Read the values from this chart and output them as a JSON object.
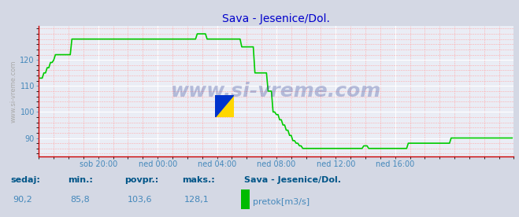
{
  "title": "Sava - Jesenice/Dol.",
  "title_color": "#0000cc",
  "bg_color": "#d4d8e4",
  "plot_bg_color": "#eaedf5",
  "grid_major_color": "#ffffff",
  "grid_minor_color": "#ffaaaa",
  "line_color": "#00cc00",
  "line_width": 1.2,
  "ylim": [
    83,
    133
  ],
  "yticks": [
    90,
    100,
    110,
    120
  ],
  "xtick_labels": [
    "sob 20:00",
    "ned 00:00",
    "ned 04:00",
    "ned 08:00",
    "ned 12:00",
    "ned 16:00"
  ],
  "footer_labels": [
    "sedaj:",
    "min.:",
    "povpr.:",
    "maks.:"
  ],
  "footer_values": [
    "90,2",
    "85,8",
    "103,6",
    "128,1"
  ],
  "footer_series": "Sava - Jesenice/Dol.",
  "footer_legend": "pretok[m3/s]",
  "legend_color": "#00bb00",
  "text_color": "#4488bb",
  "label_color": "#005588",
  "watermark": "www.si-vreme.com",
  "watermark_color": "#334499",
  "watermark_alpha": 0.3,
  "ylabel": "www.si-vreme.com",
  "data_y": [
    113,
    113,
    113,
    115,
    115,
    117,
    117,
    119,
    119,
    120,
    122,
    122,
    122,
    122,
    122,
    122,
    122,
    122,
    122,
    122,
    128,
    128,
    128,
    128,
    128,
    128,
    128,
    128,
    128,
    128,
    128,
    128,
    128,
    128,
    128,
    128,
    128,
    128,
    128,
    128,
    128,
    128,
    128,
    128,
    128,
    128,
    128,
    128,
    128,
    128,
    128,
    128,
    128,
    128,
    128,
    128,
    128,
    128,
    128,
    128,
    128,
    128,
    128,
    128,
    128,
    128,
    128,
    128,
    128,
    128,
    128,
    128,
    128,
    128,
    128,
    128,
    128,
    128,
    128,
    128,
    128,
    128,
    128,
    128,
    128,
    128,
    128,
    128,
    128,
    128,
    128,
    128,
    128,
    128,
    128,
    128,
    130,
    130,
    130,
    130,
    130,
    130,
    128,
    128,
    128,
    128,
    128,
    128,
    128,
    128,
    128,
    128,
    128,
    128,
    128,
    128,
    128,
    128,
    128,
    128,
    128,
    128,
    128,
    125,
    125,
    125,
    125,
    125,
    125,
    125,
    125,
    115,
    115,
    115,
    115,
    115,
    115,
    115,
    115,
    108,
    108,
    108,
    100,
    100,
    99,
    99,
    97,
    97,
    95,
    95,
    93,
    93,
    91,
    91,
    89,
    89,
    88,
    88,
    87,
    87,
    86,
    86,
    86,
    86,
    86,
    86,
    86,
    86,
    86,
    86,
    86,
    86,
    86,
    86,
    86,
    86,
    86,
    86,
    86,
    86,
    86,
    86,
    86,
    86,
    86,
    86,
    86,
    86,
    86,
    86,
    86,
    86,
    86,
    86,
    86,
    86,
    86,
    87,
    87,
    87,
    86,
    86,
    86,
    86,
    86,
    86,
    86,
    86,
    86,
    86,
    86,
    86,
    86,
    86,
    86,
    86,
    86,
    86,
    86,
    86,
    86,
    86,
    86,
    86,
    88,
    88,
    88,
    88,
    88,
    88,
    88,
    88,
    88,
    88,
    88,
    88,
    88,
    88,
    88,
    88,
    88,
    88,
    88,
    88,
    88,
    88,
    88,
    88,
    88,
    88,
    90,
    90,
    90,
    90,
    90,
    90,
    90,
    90,
    90,
    90,
    90,
    90,
    90,
    90,
    90,
    90,
    90,
    90,
    90,
    90,
    90,
    90,
    90,
    90,
    90,
    90,
    90,
    90,
    90,
    90,
    90,
    90,
    90,
    90,
    90,
    90,
    90,
    90
  ]
}
